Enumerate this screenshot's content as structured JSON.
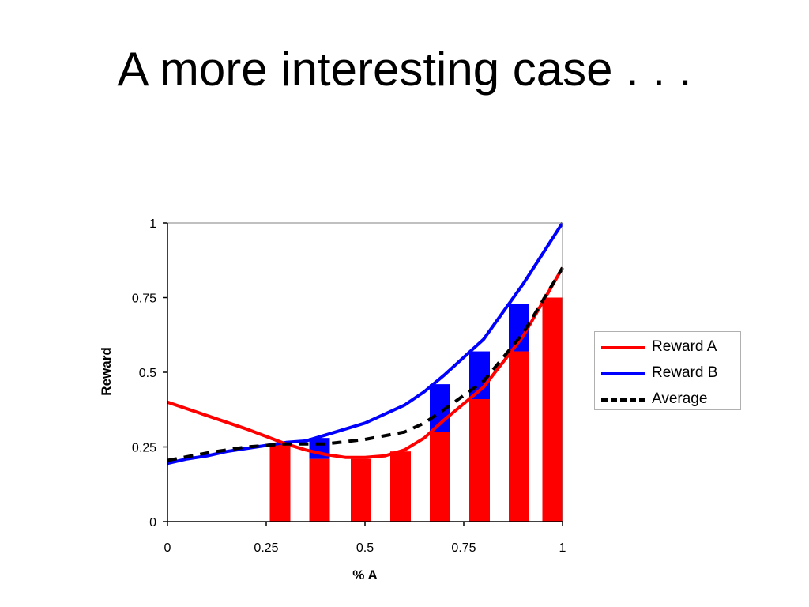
{
  "slide": {
    "title": "A more interesting case . . ."
  },
  "chart_data": {
    "type": "bar",
    "xlabel": "% A",
    "ylabel": "Reward",
    "xlim": [
      0,
      1
    ],
    "ylim": [
      0,
      1
    ],
    "x_ticks": [
      "0",
      "0.25",
      "0.5",
      "0.75",
      "1"
    ],
    "y_ticks": [
      "0",
      "0.25",
      "0.5",
      "0.75",
      "1"
    ],
    "grid": false,
    "legend_placement": "right",
    "bars": [
      {
        "x": 0.285,
        "a": 0.26,
        "b_top": 0.26
      },
      {
        "x": 0.385,
        "a": 0.21,
        "b_top": 0.28
      },
      {
        "x": 0.49,
        "a": 0.21,
        "b_top": 0.21
      },
      {
        "x": 0.59,
        "a": 0.235,
        "b_top": 0.235
      },
      {
        "x": 0.69,
        "a": 0.3,
        "b_top": 0.46
      },
      {
        "x": 0.79,
        "a": 0.41,
        "b_top": 0.57
      },
      {
        "x": 0.89,
        "a": 0.57,
        "b_top": 0.73
      },
      {
        "x": 0.975,
        "a": 0.75,
        "b_top": 0.75
      }
    ],
    "series": [
      {
        "name": "Reward A",
        "color": "#ff0000",
        "style": "solid",
        "x": [
          0,
          0.1,
          0.2,
          0.3,
          0.35,
          0.4,
          0.45,
          0.5,
          0.55,
          0.6,
          0.65,
          0.7,
          0.8,
          0.9,
          1.0
        ],
        "y": [
          0.4,
          0.355,
          0.31,
          0.26,
          0.24,
          0.225,
          0.215,
          0.215,
          0.22,
          0.24,
          0.28,
          0.34,
          0.45,
          0.62,
          0.85
        ]
      },
      {
        "name": "Reward B",
        "color": "#0000ff",
        "style": "solid",
        "x": [
          0,
          0.05,
          0.1,
          0.15,
          0.2,
          0.25,
          0.3,
          0.35,
          0.4,
          0.5,
          0.6,
          0.65,
          0.7,
          0.8,
          0.9,
          1.0
        ],
        "y": [
          0.195,
          0.21,
          0.22,
          0.235,
          0.245,
          0.255,
          0.265,
          0.27,
          0.29,
          0.33,
          0.39,
          0.435,
          0.49,
          0.61,
          0.795,
          1.0
        ]
      },
      {
        "name": "Average",
        "color": "#000000",
        "style": "dashed",
        "x": [
          0,
          0.1,
          0.2,
          0.3,
          0.4,
          0.5,
          0.6,
          0.65,
          0.7,
          0.8,
          0.9,
          1.0
        ],
        "y": [
          0.205,
          0.23,
          0.25,
          0.26,
          0.26,
          0.275,
          0.3,
          0.33,
          0.375,
          0.47,
          0.63,
          0.85
        ]
      }
    ],
    "bar_colors": {
      "a": "#ff0000",
      "b": "#0000ff"
    }
  }
}
